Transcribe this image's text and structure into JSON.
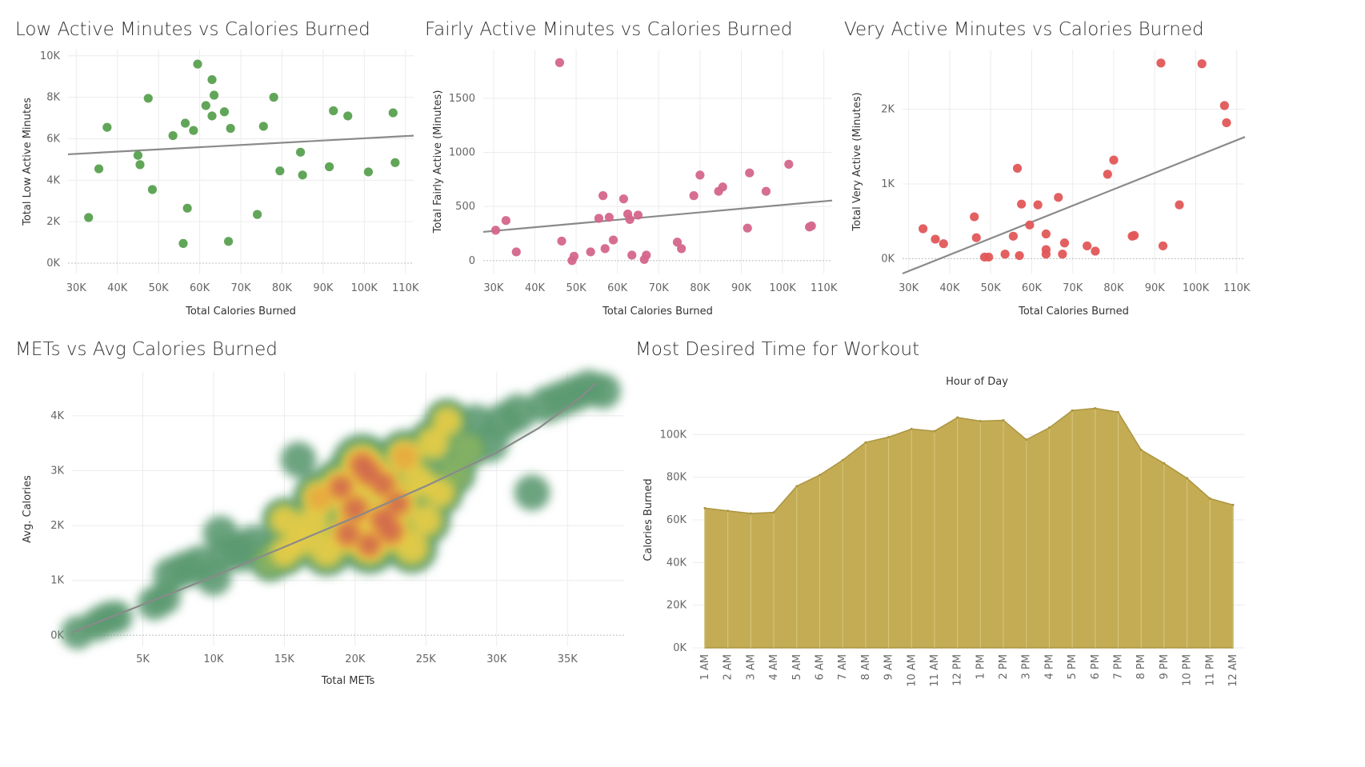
{
  "titles": {
    "low": "Low Active Minutes vs Calories Burned",
    "fair": "Fairly Active Minutes vs Calories Burned",
    "very": "Very Active Minutes vs Calories Burned",
    "mets": "METs vs Avg Calories Burned",
    "time": "Most Desired Time for Workout"
  },
  "colors": {
    "low": "#59a14f",
    "fair": "#d4668b",
    "very": "#e15759",
    "area": "#c4ac55",
    "areaLine": "#ab9540",
    "trend": "#8a8a8a"
  },
  "chart_data": [
    {
      "id": "low",
      "type": "scatter",
      "title": "Low Active Minutes vs Calories Burned",
      "xlabel": "Total Calories Burned",
      "ylabel": "Total Low Active Minutes",
      "xlim": [
        28000,
        112000
      ],
      "ylim": [
        -500,
        10300
      ],
      "xticks": [
        {
          "v": 30000,
          "l": "30K"
        },
        {
          "v": 40000,
          "l": "40K"
        },
        {
          "v": 50000,
          "l": "50K"
        },
        {
          "v": 60000,
          "l": "60K"
        },
        {
          "v": 70000,
          "l": "70K"
        },
        {
          "v": 80000,
          "l": "80K"
        },
        {
          "v": 90000,
          "l": "90K"
        },
        {
          "v": 100000,
          "l": "100K"
        },
        {
          "v": 110000,
          "l": "110K"
        }
      ],
      "yticks": [
        {
          "v": 0,
          "l": "0K"
        },
        {
          "v": 2000,
          "l": "2K"
        },
        {
          "v": 4000,
          "l": "4K"
        },
        {
          "v": 6000,
          "l": "6K"
        },
        {
          "v": 8000,
          "l": "8K"
        },
        {
          "v": 10000,
          "l": "10K"
        }
      ],
      "trend": [
        [
          28000,
          5250
        ],
        [
          112000,
          6150
        ]
      ],
      "points": [
        [
          33000,
          2200
        ],
        [
          35500,
          4550
        ],
        [
          37500,
          6550
        ],
        [
          45000,
          5200
        ],
        [
          45500,
          4750
        ],
        [
          47500,
          7950
        ],
        [
          48500,
          3550
        ],
        [
          53500,
          6150
        ],
        [
          56000,
          950
        ],
        [
          56500,
          6750
        ],
        [
          57000,
          2650
        ],
        [
          58500,
          6400
        ],
        [
          59500,
          9600
        ],
        [
          61500,
          7600
        ],
        [
          63000,
          8850
        ],
        [
          63000,
          7100
        ],
        [
          63500,
          8100
        ],
        [
          66000,
          7300
        ],
        [
          67000,
          1050
        ],
        [
          67500,
          6500
        ],
        [
          74000,
          2350
        ],
        [
          75500,
          6600
        ],
        [
          78000,
          8000
        ],
        [
          79500,
          4450
        ],
        [
          84500,
          5350
        ],
        [
          85000,
          4250
        ],
        [
          91500,
          4650
        ],
        [
          92500,
          7350
        ],
        [
          96000,
          7100
        ],
        [
          101000,
          4400
        ],
        [
          107000,
          7250
        ],
        [
          107500,
          4850
        ]
      ]
    },
    {
      "id": "fair",
      "type": "scatter",
      "title": "Fairly Active Minutes vs Calories Burned",
      "xlabel": "Total Calories Burned",
      "ylabel": "Total Fairly Active (Minutes)",
      "xlim": [
        27500,
        112000
      ],
      "ylim": [
        -120,
        1950
      ],
      "xticks": [
        {
          "v": 30000,
          "l": "30K"
        },
        {
          "v": 40000,
          "l": "40K"
        },
        {
          "v": 50000,
          "l": "50K"
        },
        {
          "v": 60000,
          "l": "60K"
        },
        {
          "v": 70000,
          "l": "70K"
        },
        {
          "v": 80000,
          "l": "80K"
        },
        {
          "v": 90000,
          "l": "90K"
        },
        {
          "v": 100000,
          "l": "100K"
        },
        {
          "v": 110000,
          "l": "110K"
        }
      ],
      "yticks": [
        {
          "v": 0,
          "l": "0"
        },
        {
          "v": 500,
          "l": "500"
        },
        {
          "v": 1000,
          "l": "1000"
        },
        {
          "v": 1500,
          "l": "1500"
        }
      ],
      "trend": [
        [
          27500,
          265
        ],
        [
          112000,
          555
        ]
      ],
      "points": [
        [
          30500,
          280
        ],
        [
          33000,
          370
        ],
        [
          35500,
          80
        ],
        [
          46000,
          1830
        ],
        [
          46500,
          180
        ],
        [
          49000,
          0
        ],
        [
          49500,
          40
        ],
        [
          53500,
          80
        ],
        [
          55500,
          390
        ],
        [
          56500,
          600
        ],
        [
          57000,
          110
        ],
        [
          58000,
          400
        ],
        [
          59000,
          190
        ],
        [
          61500,
          570
        ],
        [
          62500,
          430
        ],
        [
          63000,
          380
        ],
        [
          63500,
          50
        ],
        [
          65000,
          420
        ],
        [
          66500,
          10
        ],
        [
          67000,
          50
        ],
        [
          74500,
          170
        ],
        [
          75500,
          110
        ],
        [
          78500,
          600
        ],
        [
          80000,
          790
        ],
        [
          84500,
          640
        ],
        [
          85500,
          680
        ],
        [
          91500,
          300
        ],
        [
          92000,
          810
        ],
        [
          96000,
          640
        ],
        [
          101500,
          890
        ],
        [
          106500,
          310
        ],
        [
          107000,
          320
        ]
      ]
    },
    {
      "id": "very",
      "type": "scatter",
      "title": "Very Active Minutes vs Calories Burned",
      "xlabel": "Total Calories Burned",
      "ylabel": "Total Very Active (Minutes)",
      "xlim": [
        28500,
        112000
      ],
      "ylim": [
        -200,
        2800
      ],
      "xticks": [
        {
          "v": 30000,
          "l": "30K"
        },
        {
          "v": 40000,
          "l": "40K"
        },
        {
          "v": 50000,
          "l": "50K"
        },
        {
          "v": 60000,
          "l": "60K"
        },
        {
          "v": 70000,
          "l": "70K"
        },
        {
          "v": 80000,
          "l": "80K"
        },
        {
          "v": 90000,
          "l": "90K"
        },
        {
          "v": 100000,
          "l": "100K"
        },
        {
          "v": 110000,
          "l": "110K"
        }
      ],
      "yticks": [
        {
          "v": 0,
          "l": "0K"
        },
        {
          "v": 1000,
          "l": "1K"
        },
        {
          "v": 2000,
          "l": "2K"
        }
      ],
      "trend": [
        [
          28500,
          -200
        ],
        [
          112000,
          1630
        ]
      ],
      "points": [
        [
          33500,
          400
        ],
        [
          36500,
          260
        ],
        [
          38500,
          200
        ],
        [
          46000,
          560
        ],
        [
          46500,
          280
        ],
        [
          48500,
          20
        ],
        [
          49500,
          20
        ],
        [
          53500,
          60
        ],
        [
          55500,
          300
        ],
        [
          56500,
          1210
        ],
        [
          57000,
          40
        ],
        [
          57500,
          730
        ],
        [
          59500,
          450
        ],
        [
          61500,
          720
        ],
        [
          63500,
          330
        ],
        [
          63500,
          120
        ],
        [
          63500,
          60
        ],
        [
          66500,
          820
        ],
        [
          67500,
          60
        ],
        [
          68000,
          210
        ],
        [
          73500,
          170
        ],
        [
          75500,
          100
        ],
        [
          78500,
          1130
        ],
        [
          80000,
          1320
        ],
        [
          84500,
          300
        ],
        [
          85000,
          310
        ],
        [
          91500,
          2620
        ],
        [
          92000,
          170
        ],
        [
          96000,
          720
        ],
        [
          101500,
          2610
        ],
        [
          107000,
          2050
        ],
        [
          107500,
          1820
        ]
      ]
    },
    {
      "id": "mets",
      "type": "heatmap",
      "title": "METs vs Avg Calories Burned",
      "xlabel": "Total METs",
      "ylabel": "Avg. Calories",
      "xlim": [
        0,
        39000
      ],
      "ylim": [
        -200,
        4800
      ],
      "xticks": [
        {
          "v": 5000,
          "l": "5K"
        },
        {
          "v": 10000,
          "l": "10K"
        },
        {
          "v": 15000,
          "l": "15K"
        },
        {
          "v": 20000,
          "l": "20K"
        },
        {
          "v": 25000,
          "l": "25K"
        },
        {
          "v": 30000,
          "l": "30K"
        },
        {
          "v": 35000,
          "l": "35K"
        }
      ],
      "yticks": [
        {
          "v": 0,
          "l": "0K"
        },
        {
          "v": 1000,
          "l": "1K"
        },
        {
          "v": 2000,
          "l": "2K"
        },
        {
          "v": 3000,
          "l": "3K"
        },
        {
          "v": 4000,
          "l": "4K"
        }
      ],
      "trend": [
        [
          0,
          50
        ],
        [
          5000,
          560
        ],
        [
          10000,
          1070
        ],
        [
          15000,
          1610
        ],
        [
          20000,
          2150
        ],
        [
          25000,
          2720
        ],
        [
          30000,
          3330
        ],
        [
          33000,
          3780
        ],
        [
          36000,
          4350
        ],
        [
          37000,
          4600
        ]
      ],
      "density": [
        [
          400,
          50,
          1
        ],
        [
          1800,
          200,
          1
        ],
        [
          2500,
          300,
          1
        ],
        [
          3100,
          330,
          1
        ],
        [
          5800,
          580,
          1
        ],
        [
          6500,
          680,
          1
        ],
        [
          7000,
          1100,
          1.2
        ],
        [
          8000,
          1200,
          1.3
        ],
        [
          9000,
          1300,
          1.3
        ],
        [
          10000,
          1050,
          1.2
        ],
        [
          10500,
          1850,
          1.2
        ],
        [
          11000,
          1500,
          1.3
        ],
        [
          12000,
          1500,
          1.4
        ],
        [
          12800,
          1650,
          1.5
        ],
        [
          14000,
          1350,
          1.6
        ],
        [
          15000,
          1500,
          2
        ],
        [
          16000,
          3200,
          1.2
        ],
        [
          15000,
          2100,
          2
        ],
        [
          16000,
          1700,
          2.2
        ],
        [
          17000,
          2050,
          2.6
        ],
        [
          17500,
          2500,
          2.8
        ],
        [
          18000,
          1550,
          2.6
        ],
        [
          19000,
          2700,
          3.2
        ],
        [
          19500,
          1850,
          3.4
        ],
        [
          20000,
          2300,
          3.6
        ],
        [
          20500,
          3100,
          3.6
        ],
        [
          21000,
          2950,
          3.6
        ],
        [
          21000,
          1650,
          3.2
        ],
        [
          22000,
          2750,
          3.2
        ],
        [
          22000,
          2100,
          3.8
        ],
        [
          22500,
          1900,
          3.6
        ],
        [
          23000,
          2400,
          3.2
        ],
        [
          23500,
          3250,
          2.8
        ],
        [
          24000,
          1600,
          2.6
        ],
        [
          24500,
          2800,
          2.6
        ],
        [
          25000,
          2100,
          2.4
        ],
        [
          25500,
          3500,
          2.4
        ],
        [
          26000,
          2600,
          2.1
        ],
        [
          26500,
          3900,
          2
        ],
        [
          27000,
          2950,
          1.8
        ],
        [
          28000,
          3400,
          1.6
        ],
        [
          28500,
          3850,
          1.5
        ],
        [
          29500,
          3500,
          1.4
        ],
        [
          30500,
          3900,
          1.4
        ],
        [
          31500,
          4050,
          1.4
        ],
        [
          32500,
          2600,
          1.2
        ],
        [
          33500,
          4200,
          1.3
        ],
        [
          34500,
          4300,
          1.3
        ],
        [
          35500,
          4400,
          1.3
        ],
        [
          36500,
          4500,
          1.3
        ],
        [
          37500,
          4450,
          1.2
        ]
      ]
    },
    {
      "id": "time",
      "type": "area",
      "title": "Most Desired Time for Workout",
      "header": "Hour of Day",
      "ylabel": "Calories Burned",
      "ylim": [
        0,
        120000
      ],
      "yticks": [
        {
          "v": 0,
          "l": "0K"
        },
        {
          "v": 20000,
          "l": "20K"
        },
        {
          "v": 40000,
          "l": "40K"
        },
        {
          "v": 60000,
          "l": "60K"
        },
        {
          "v": 80000,
          "l": "80K"
        },
        {
          "v": 100000,
          "l": "100K"
        }
      ],
      "categories": [
        "1 AM",
        "2 AM",
        "3 AM",
        "4 AM",
        "5 AM",
        "6 AM",
        "7 AM",
        "8 AM",
        "9 AM",
        "10 AM",
        "11 AM",
        "12 PM",
        "1 PM",
        "2 PM",
        "3 PM",
        "4 PM",
        "5 PM",
        "6 PM",
        "7 PM",
        "8 PM",
        "9 PM",
        "10 PM",
        "11 PM",
        "12 AM"
      ],
      "values": [
        65500,
        64200,
        63000,
        63500,
        75800,
        81000,
        88000,
        96300,
        98800,
        102600,
        101600,
        108000,
        106300,
        106700,
        97600,
        103200,
        111300,
        112300,
        110500,
        92800,
        86500,
        79500,
        70000,
        67000
      ]
    }
  ]
}
